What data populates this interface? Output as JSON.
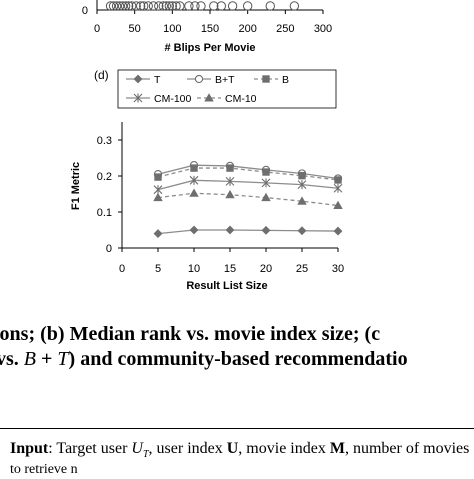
{
  "top_chart": {
    "xlabel": "# Blips Per Movie",
    "x_ticks": [
      "0",
      "50",
      "100",
      "150",
      "200",
      "250",
      "300"
    ],
    "y_tick_visible": "0",
    "markers_x": [
      18,
      22,
      26,
      30,
      34,
      38,
      42,
      46,
      52,
      58,
      62,
      68,
      75,
      82,
      88,
      92,
      96,
      100,
      105,
      110,
      122,
      130,
      138,
      155,
      165,
      180,
      200,
      230,
      262
    ]
  },
  "chart_data": {
    "type": "line",
    "panel_label": "(d)",
    "title": "",
    "xlabel": "Result List Size",
    "ylabel": "F1 Metric",
    "x": [
      5,
      10,
      15,
      20,
      25,
      30
    ],
    "xlim": [
      0,
      30
    ],
    "ylim": [
      0,
      0.35
    ],
    "x_ticks": [
      "0",
      "5",
      "10",
      "15",
      "20",
      "25",
      "30"
    ],
    "y_ticks": [
      "0",
      "0.1",
      "0.2",
      "0.3"
    ],
    "legend_position": "top",
    "series": [
      {
        "name": "T",
        "marker": "diamond",
        "line": "solid",
        "values": [
          0.04,
          0.05,
          0.05,
          0.049,
          0.048,
          0.047
        ]
      },
      {
        "name": "B+T",
        "marker": "circle",
        "line": "solid",
        "values": [
          0.205,
          0.23,
          0.228,
          0.217,
          0.207,
          0.193
        ]
      },
      {
        "name": "B",
        "marker": "square",
        "line": "dashed",
        "values": [
          0.197,
          0.222,
          0.222,
          0.211,
          0.201,
          0.189
        ]
      },
      {
        "name": "CM-100",
        "marker": "star",
        "line": "solid",
        "values": [
          0.162,
          0.188,
          0.185,
          0.181,
          0.176,
          0.166
        ]
      },
      {
        "name": "CM-10",
        "marker": "triangle",
        "line": "dashed",
        "values": [
          0.14,
          0.152,
          0.148,
          0.14,
          0.13,
          0.118
        ]
      }
    ]
  },
  "caption": {
    "line1_a": "ions; (b) Median rank vs.  movie index size; (c",
    "line2_a": "vs. ",
    "line2_math": "B",
    "line2_b": " + ",
    "line2_math2": "T",
    "line2_c": ") and community-based recommendatio"
  },
  "algorithm": {
    "input_label": "Input",
    "line1_a": ": Target user ",
    "user_symbol": "U",
    "user_sub": "T",
    "line1_b": ", user index ",
    "user_index": "U",
    "line1_c": ", movie index ",
    "movie_index": "M",
    "line1_d": ", number of movies",
    "line2": "to retrieve n"
  },
  "colors": {
    "series_line": "#8c8c8c",
    "series_marker": "#6e6e6e",
    "axis": "#000000",
    "grid": "#d9d9d9"
  }
}
